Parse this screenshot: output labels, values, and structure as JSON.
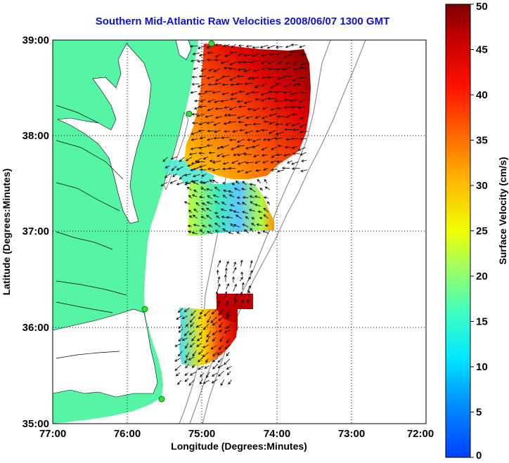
{
  "title": "Southern Mid-Atlantic Raw Velocities 2008/06/07 1300 GMT",
  "x_axis": {
    "label": "Longitude (Degrees:Minutes)",
    "ticks": [
      "77:00",
      "76:00",
      "75:00",
      "74:00",
      "73:00",
      "72:00"
    ]
  },
  "y_axis": {
    "label": "Latitude (Degrees:Minutes)",
    "ticks": [
      "39:00",
      "38:00",
      "37:00",
      "36:00",
      "35:00"
    ]
  },
  "colorbar": {
    "label": "Surface Velocity (cm/s)",
    "ticks": [
      "50",
      "45",
      "40",
      "35",
      "30",
      "25",
      "20",
      "15",
      "10",
      "5",
      "0"
    ],
    "min": 0,
    "max": 50
  },
  "colors": {
    "land": "#55f5a5",
    "title": "#1010e0",
    "grid": "#000000"
  },
  "chart_data": {
    "type": "heatmap",
    "x_range_deg": [
      -77,
      -72
    ],
    "y_range_deg": [
      35,
      39
    ],
    "value_units": "cm/s",
    "stations": [
      {
        "lon": -74.88,
        "lat": 39.0
      },
      {
        "lon": -75.09,
        "lat": 38.23
      },
      {
        "lon": -75.73,
        "lat": 36.18
      },
      {
        "lon": -75.51,
        "lat": 35.28
      }
    ],
    "regions": [
      {
        "lon_min": -75.5,
        "lon_max": -73.55,
        "lat_min": 37.7,
        "lat_max": 38.95,
        "speed_low": 22,
        "speed_high": 50
      },
      {
        "lon_min": -75.9,
        "lon_max": -74.0,
        "lat_min": 36.95,
        "lat_max": 37.8,
        "speed_low": 10,
        "speed_high": 30
      },
      {
        "lon_min": -75.3,
        "lon_max": -74.5,
        "lat_min": 35.6,
        "lat_max": 36.3,
        "speed_low": 8,
        "speed_high": 50
      }
    ]
  }
}
